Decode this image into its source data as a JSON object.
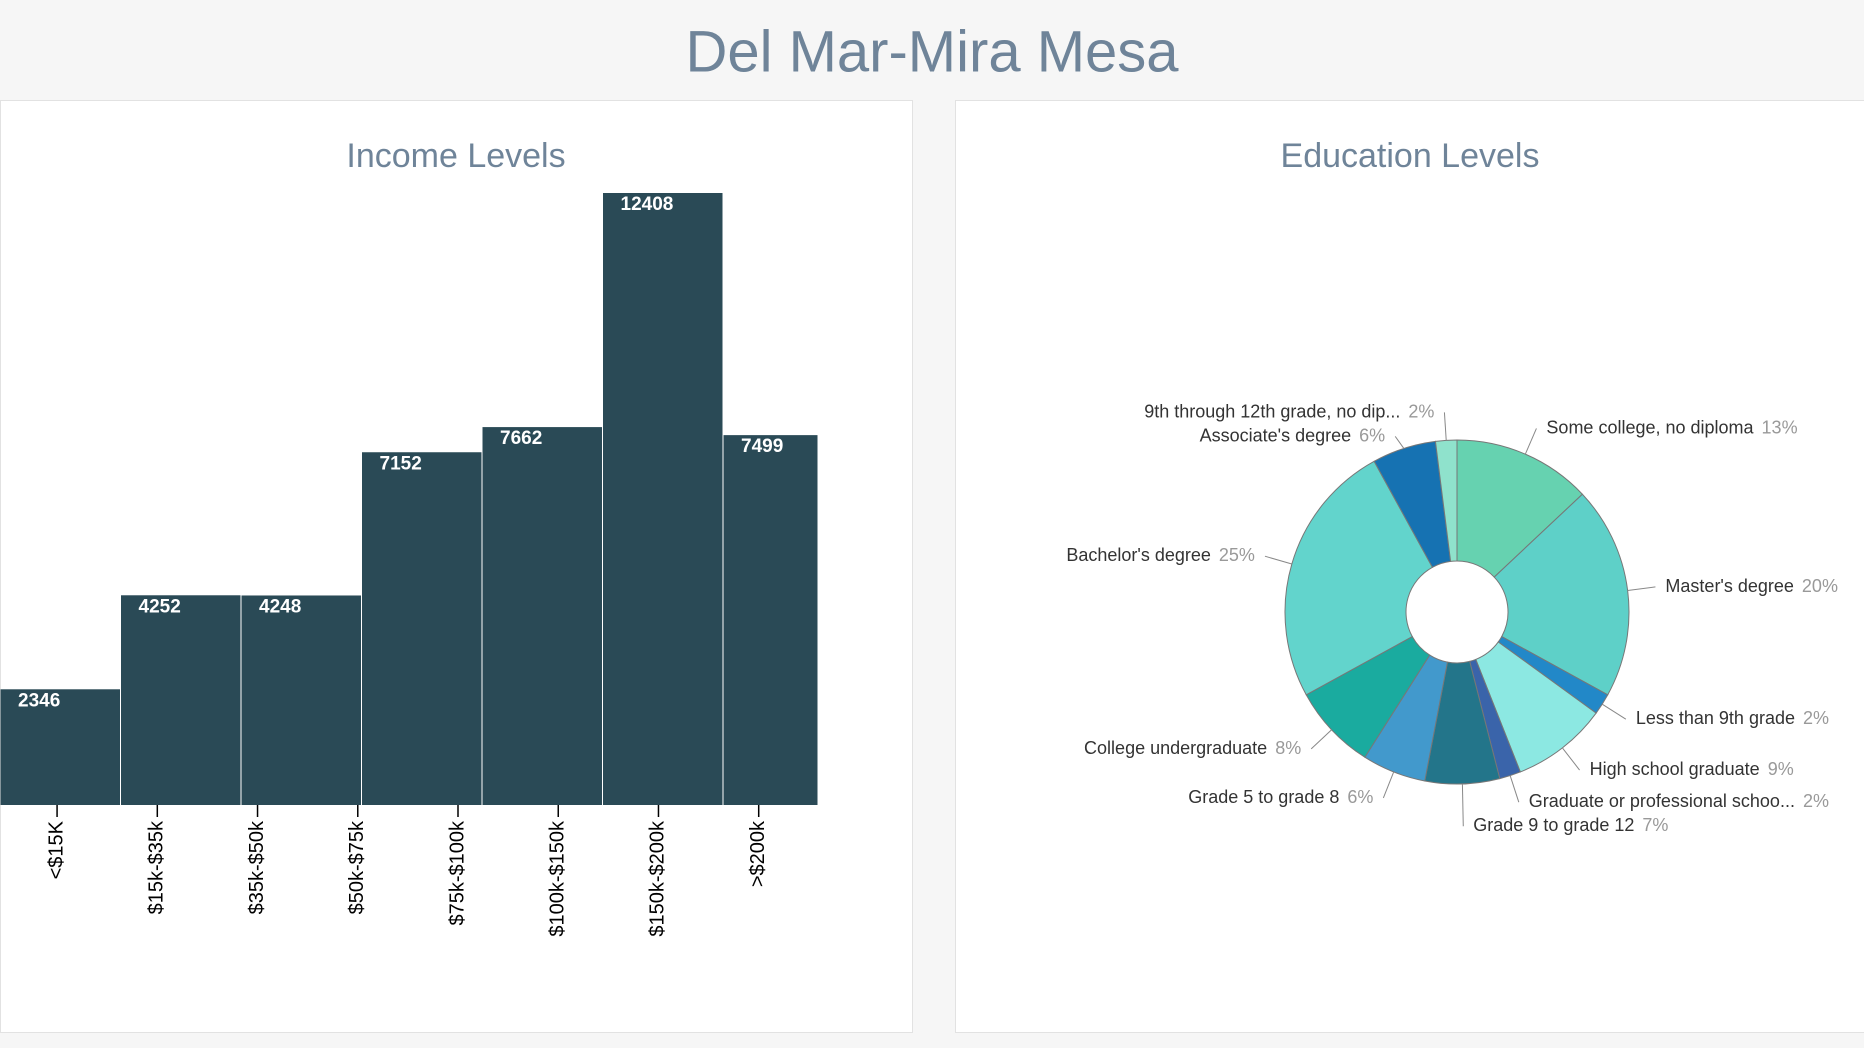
{
  "title": "Del Mar-Mira Mesa",
  "chart_data": [
    {
      "type": "bar",
      "title": "Income Levels",
      "categories": [
        "<$15K",
        "$15k-$35k",
        "$35k-$50k",
        "$50k-$75k",
        "$75k-$100k",
        "$100k-$150k",
        "$150k-$200k",
        ">$200k"
      ],
      "values": [
        2346,
        4252,
        4248,
        7152,
        7662,
        12408,
        7499,
        0
      ],
      "color": "#2a4a56"
    },
    {
      "type": "pie",
      "title": "Education Levels",
      "categories": [
        "Some college, no diploma",
        "Master's degree",
        "Less than 9th grade",
        "High school graduate",
        "Graduate or professional schoo...",
        "Grade 9 to grade 12",
        "Grade 5 to grade 8",
        "College undergraduate",
        "Bachelor's degree",
        "Associate's degree",
        "9th through 12th grade, no dip..."
      ],
      "values": [
        13,
        20,
        2,
        9,
        2,
        7,
        6,
        8,
        25,
        6,
        2
      ],
      "value_labels": [
        "13%",
        "20%",
        "2%",
        "9%",
        "2%",
        "7%",
        "6%",
        "8%",
        "25%",
        "6%",
        "2%"
      ],
      "colors": [
        "#66d2b0",
        "#5ed0c8",
        "#2288c8",
        "#8ce8e2",
        "#3a64aa",
        "#23758a",
        "#4299cc",
        "#1aab9f",
        "#62d4cc",
        "#1672b2",
        "#8fe2cc"
      ]
    }
  ]
}
